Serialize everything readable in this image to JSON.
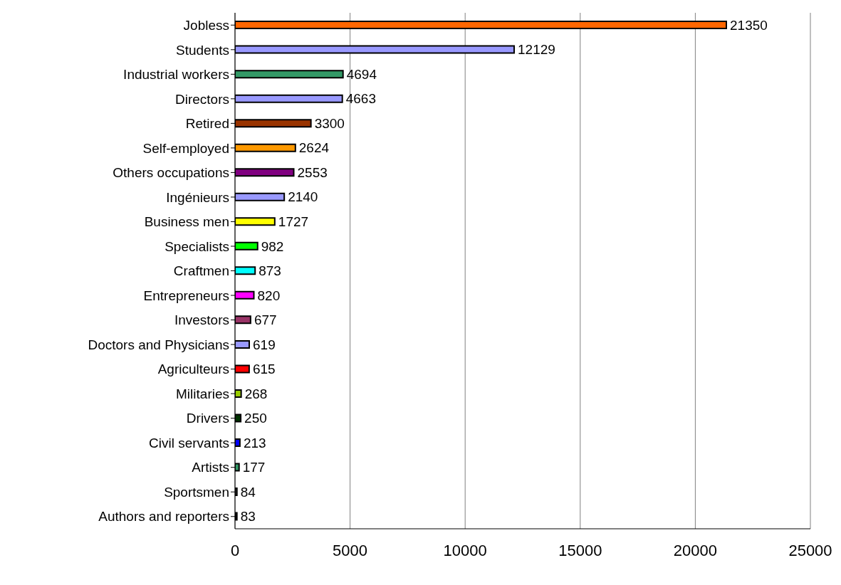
{
  "chart_data": {
    "type": "bar",
    "orientation": "horizontal",
    "categories": [
      "Jobless",
      "Students",
      "Industrial workers",
      "Directors",
      "Retired",
      "Self-employed",
      "Others occupations",
      "Ingénieurs",
      "Business men",
      "Specialists",
      "Craftmen",
      "Entrepreneurs ",
      "Investors",
      "Doctors and Physicians",
      "Agriculteurs",
      "Militaries",
      "Drivers",
      "Civil servants",
      "Artists",
      "Sportsmen",
      "Authors and reporters"
    ],
    "values": [
      21350,
      12129,
      4694,
      4663,
      3300,
      2624,
      2553,
      2140,
      1727,
      982,
      873,
      820,
      677,
      619,
      615,
      268,
      250,
      213,
      177,
      84,
      83
    ],
    "colors": [
      "#ff6600",
      "#9999ff",
      "#339966",
      "#9999ff",
      "#993300",
      "#ff9900",
      "#800080",
      "#9999ff",
      "#ffff00",
      "#00ff00",
      "#00ffff",
      "#ff00ff",
      "#993366",
      "#9999ff",
      "#ff0000",
      "#99cc00",
      "#003300",
      "#0000ff",
      "#339966",
      "#333333",
      "#000000"
    ],
    "xlim": [
      0,
      25000
    ],
    "xticks": [
      0,
      5000,
      10000,
      15000,
      20000,
      25000
    ],
    "grid": "x",
    "data_labels": true
  }
}
